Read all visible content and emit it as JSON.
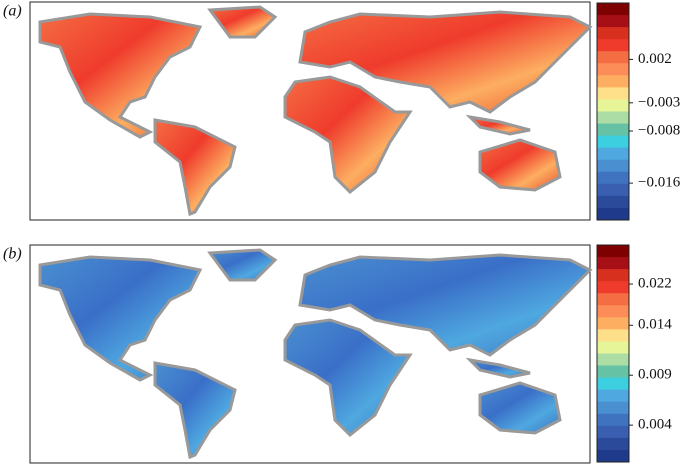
{
  "panels": [
    {
      "label": "(a)",
      "colorbar": {
        "colors": [
          "#7f0000",
          "#a50f15",
          "#d7301f",
          "#ef3b2c",
          "#f46d43",
          "#fc8d59",
          "#fdae61",
          "#fee08b",
          "#e6f598",
          "#abdda4",
          "#66c2a5",
          "#3ccfe0",
          "#4fa8e0",
          "#4a8fd0",
          "#3f73c0",
          "#3a5fb0",
          "#2c4a9a",
          "#1f3a8a"
        ],
        "ticks": [
          0.002,
          {
            "value": -0.003,
            "label": "−0.003"
          },
          {
            "value": -0.008,
            "label": "−0.008"
          },
          {
            "value": -0.016,
            "label": "−0.016"
          }
        ]
      }
    },
    {
      "label": "(b)",
      "colorbar": {
        "colors": [
          "#7f0000",
          "#a50f15",
          "#d7301f",
          "#ef3b2c",
          "#f46d43",
          "#fc8d59",
          "#fdae61",
          "#fee08b",
          "#e6f598",
          "#abdda4",
          "#66c2a5",
          "#3ccfe0",
          "#4fa8e0",
          "#4a8fd0",
          "#3f73c0",
          "#3a5fb0",
          "#2c4a9a",
          "#1f3a8a"
        ],
        "ticks": [
          0.022,
          0.014,
          0.009,
          0.004
        ]
      }
    }
  ]
}
